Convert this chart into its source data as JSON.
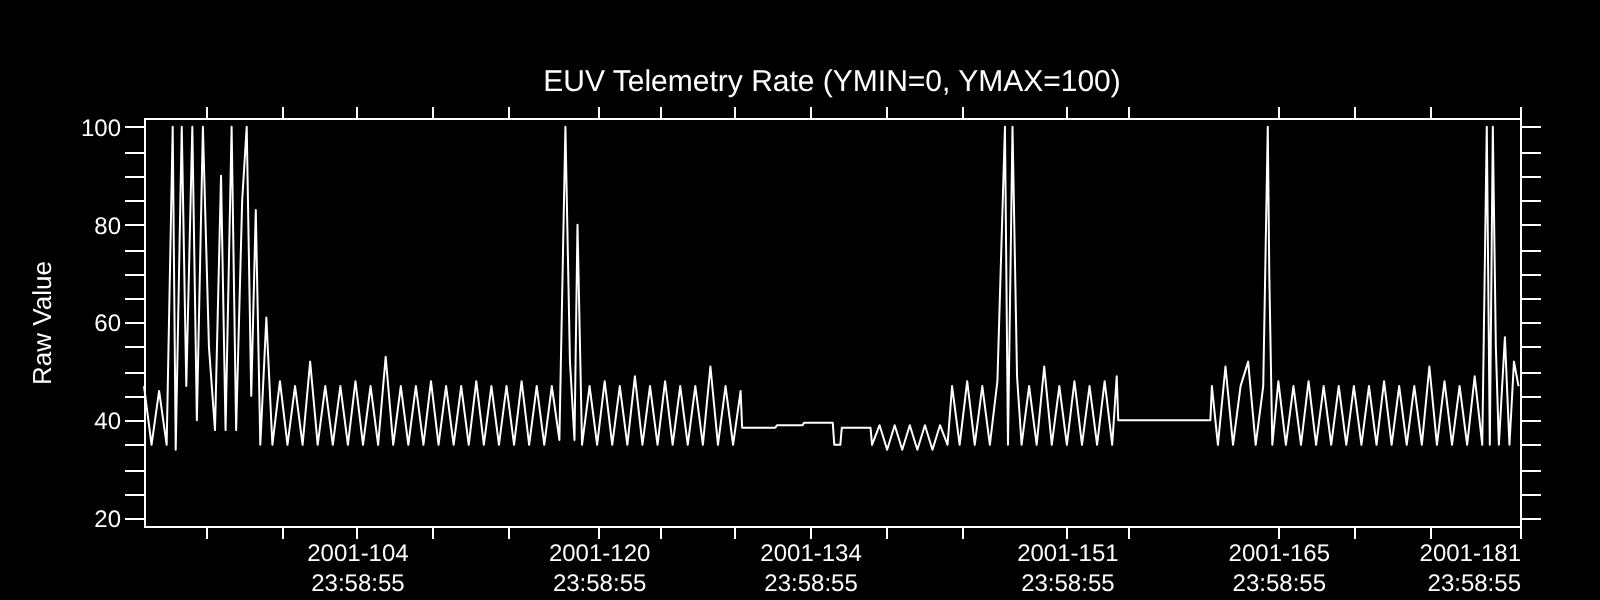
{
  "chart_data": {
    "type": "line",
    "title": "EUV Telemetry Rate (YMIN=0, YMAX=100)",
    "ylabel": "Raw Value",
    "xlim": [
      "2001-03-31T21:36",
      "2001-06-30T23:58:55"
    ],
    "ylim": [
      18.4,
      101.8
    ],
    "xticks": [
      {
        "value": "2001-04-04T23:58:55",
        "label": null
      },
      {
        "value": "2001-04-09T23:58:55",
        "label": null
      },
      {
        "value": "2001-04-14T23:58:55",
        "label": "2001-104\n23:58:55"
      },
      {
        "value": "2001-04-19T23:58:55",
        "label": null
      },
      {
        "value": "2001-04-24T23:58:55",
        "label": null
      },
      {
        "value": "2001-04-30T23:58:55",
        "label": "2001-120\n23:58:55"
      },
      {
        "value": "2001-05-04T23:58:55",
        "label": null
      },
      {
        "value": "2001-05-09T23:58:55",
        "label": null
      },
      {
        "value": "2001-05-14T23:58:55",
        "label": "2001-134\n23:58:55"
      },
      {
        "value": "2001-05-19T23:58:55",
        "label": null
      },
      {
        "value": "2001-05-24T23:58:55",
        "label": null
      },
      {
        "value": "2001-05-31T23:58:55",
        "label": "2001-151\n23:58:55"
      },
      {
        "value": "2001-06-04T23:58:55",
        "label": null
      },
      {
        "value": "2001-06-14T23:58:55",
        "label": "2001-165\n23:58:55"
      },
      {
        "value": "2001-06-19T23:58:55",
        "label": null
      },
      {
        "value": "2001-06-24T23:58:55",
        "label": null
      },
      {
        "value": "2001-06-30T23:58:55",
        "label": "2001-181\n23:58:55"
      }
    ],
    "yticks": [
      20,
      {
        "value": 25,
        "label": null
      },
      {
        "value": 30,
        "label": null
      },
      {
        "value": 35,
        "label": null
      },
      40,
      {
        "value": 45,
        "label": null
      },
      {
        "value": 50,
        "label": null
      },
      {
        "value": 55,
        "label": null
      },
      60,
      {
        "value": 65,
        "label": null
      },
      {
        "value": 70,
        "label": null
      },
      {
        "value": 75,
        "label": null
      },
      80,
      {
        "value": 85,
        "label": null
      },
      {
        "value": 90,
        "label": null
      },
      {
        "value": 95,
        "label": null
      },
      100
    ],
    "grid": false,
    "series": [
      {
        "color": "#ffffff",
        "x": [
          "2001-03-31T21:36",
          "2001-04-01T09:36",
          "2001-04-01T21:36",
          "2001-04-02T09:36",
          "2001-04-02T19:12",
          "2001-04-03T00:00",
          "2001-04-03T09:36",
          "2001-04-03T16:48",
          "2001-04-04T02:24",
          "2001-04-04T09:36",
          "2001-04-04T19:12",
          "2001-04-05T04:48",
          "2001-04-05T14:24",
          "2001-04-06T00:00",
          "2001-04-06T07:12",
          "2001-04-06T16:48",
          "2001-04-07T00:00",
          "2001-04-07T09:36",
          "2001-04-07T16:48",
          "2001-04-08T00:00",
          "2001-04-08T07:12",
          "2001-04-08T14:24",
          "2001-04-09T00:00",
          "2001-04-09T09:36",
          "2001-04-09T21:36",
          "2001-04-10T09:36",
          "2001-04-10T21:36",
          "2001-04-11T09:36",
          "2001-04-11T21:36",
          "2001-04-12T09:36",
          "2001-04-12T21:36",
          "2001-04-13T09:36",
          "2001-04-13T21:36",
          "2001-04-14T09:36",
          "2001-04-14T21:36",
          "2001-04-15T09:36",
          "2001-04-15T21:36",
          "2001-04-16T09:36",
          "2001-04-16T21:36",
          "2001-04-17T09:36",
          "2001-04-17T21:36",
          "2001-04-18T09:36",
          "2001-04-18T21:36",
          "2001-04-19T09:36",
          "2001-04-19T21:36",
          "2001-04-20T09:36",
          "2001-04-20T21:36",
          "2001-04-21T09:36",
          "2001-04-21T21:36",
          "2001-04-22T09:36",
          "2001-04-22T21:36",
          "2001-04-23T09:36",
          "2001-04-23T21:36",
          "2001-04-24T09:36",
          "2001-04-24T21:36",
          "2001-04-25T09:36",
          "2001-04-25T21:36",
          "2001-04-26T09:36",
          "2001-04-26T21:36",
          "2001-04-27T09:36",
          "2001-04-27T21:36",
          "2001-04-28T09:36",
          "2001-04-28T19:12",
          "2001-04-29T02:24",
          "2001-04-29T09:36",
          "2001-04-29T14:24",
          "2001-04-29T21:36",
          "2001-04-30T09:36",
          "2001-04-30T21:36",
          "2001-05-01T09:36",
          "2001-05-01T21:36",
          "2001-05-02T09:36",
          "2001-05-02T21:36",
          "2001-05-03T09:36",
          "2001-05-03T21:36",
          "2001-05-04T09:36",
          "2001-05-04T21:36",
          "2001-05-05T09:36",
          "2001-05-05T21:36",
          "2001-05-06T09:36",
          "2001-05-06T21:36",
          "2001-05-07T09:36",
          "2001-05-07T21:36",
          "2001-05-08T09:36",
          "2001-05-08T21:36",
          "2001-05-09T09:36",
          "2001-05-09T21:36",
          "2001-05-10T09:36",
          "2001-05-10T12:00",
          "2001-05-12T16:48",
          "2001-05-12T19:12",
          "2001-05-14T12:00",
          "2001-05-14T14:24",
          "2001-05-16T12:00",
          "2001-05-16T14:24",
          "2001-05-17T00:00",
          "2001-05-17T02:24",
          "2001-05-19T00:00",
          "2001-05-19T02:24",
          "2001-05-19T14:24",
          "2001-05-20T02:24",
          "2001-05-20T14:24",
          "2001-05-21T02:24",
          "2001-05-21T14:24",
          "2001-05-22T02:24",
          "2001-05-22T14:24",
          "2001-05-23T02:24",
          "2001-05-23T14:24",
          "2001-05-24T02:24",
          "2001-05-24T09:36",
          "2001-05-24T21:36",
          "2001-05-25T09:36",
          "2001-05-25T21:36",
          "2001-05-26T09:36",
          "2001-05-26T21:36",
          "2001-05-27T09:36",
          "2001-05-27T21:36",
          "2001-05-28T02:24",
          "2001-05-28T09:36",
          "2001-05-28T16:48",
          "2001-05-29T00:00",
          "2001-05-29T12:00",
          "2001-05-30T00:00",
          "2001-05-30T12:00",
          "2001-05-31T00:00",
          "2001-05-31T12:00",
          "2001-06-01T00:00",
          "2001-06-01T12:00",
          "2001-06-02T00:00",
          "2001-06-02T12:00",
          "2001-06-03T00:00",
          "2001-06-03T12:00",
          "2001-06-04T00:00",
          "2001-06-04T07:12",
          "2001-06-04T09:36",
          "2001-06-10T12:00",
          "2001-06-10T14:24",
          "2001-06-11T00:00",
          "2001-06-11T12:00",
          "2001-06-12T00:00",
          "2001-06-12T12:00",
          "2001-06-13T00:00",
          "2001-06-13T12:00",
          "2001-06-14T00:00",
          "2001-06-14T07:12",
          "2001-06-14T09:36",
          "2001-06-14T14:24",
          "2001-06-15T00:00",
          "2001-06-15T12:00",
          "2001-06-16T00:00",
          "2001-06-16T12:00",
          "2001-06-17T00:00",
          "2001-06-17T12:00",
          "2001-06-18T00:00",
          "2001-06-18T12:00",
          "2001-06-19T00:00",
          "2001-06-19T12:00",
          "2001-06-20T00:00",
          "2001-06-20T12:00",
          "2001-06-21T00:00",
          "2001-06-21T12:00",
          "2001-06-22T00:00",
          "2001-06-22T12:00",
          "2001-06-23T00:00",
          "2001-06-23T12:00",
          "2001-06-24T00:00",
          "2001-06-24T12:00",
          "2001-06-25T00:00",
          "2001-06-25T12:00",
          "2001-06-26T00:00",
          "2001-06-26T12:00",
          "2001-06-27T00:00",
          "2001-06-27T12:00",
          "2001-06-28T00:00",
          "2001-06-28T12:00",
          "2001-06-28T19:12",
          "2001-06-29T00:00",
          "2001-06-29T04:48",
          "2001-06-29T09:36",
          "2001-06-29T14:24",
          "2001-06-30T00:00",
          "2001-06-30T07:12",
          "2001-06-30T14:24",
          "2001-06-30T21:36"
        ],
        "values": [
          47,
          35,
          46,
          35,
          100,
          34,
          100,
          47,
          100,
          40,
          100,
          55,
          38,
          90,
          38,
          100,
          38,
          85,
          100,
          45,
          83,
          35,
          61,
          35,
          48,
          35,
          47,
          35,
          52,
          35,
          47,
          35,
          47,
          35,
          48,
          35,
          47,
          35,
          53,
          35,
          47,
          35,
          47,
          35,
          48,
          35,
          47,
          35,
          47,
          35,
          48,
          35,
          47,
          35,
          47,
          35,
          48,
          35,
          47,
          35,
          47,
          36,
          100,
          52,
          36,
          80,
          35,
          47,
          35,
          48,
          35,
          47,
          35,
          49,
          35,
          47,
          35,
          48,
          35,
          47,
          35,
          47,
          35,
          51,
          35,
          47,
          35,
          46,
          38.5,
          38.5,
          39,
          39,
          39.5,
          39.5,
          35,
          35,
          38.5,
          38.5,
          35,
          39,
          34,
          39,
          34,
          39,
          34,
          39,
          34,
          39,
          35,
          47,
          35,
          48,
          35,
          47,
          35,
          48,
          100,
          35,
          100,
          49,
          35,
          47,
          35,
          51,
          35,
          47,
          35,
          48,
          35,
          47,
          35,
          48,
          35,
          49,
          40,
          40,
          47,
          35,
          51,
          35,
          47,
          52,
          35,
          47,
          100,
          70,
          35,
          48,
          35,
          47,
          35,
          48,
          35,
          47,
          35,
          47,
          35,
          47,
          35,
          47,
          35,
          48,
          35,
          47,
          35,
          47,
          35,
          51,
          35,
          48,
          35,
          47,
          35,
          49,
          35,
          100,
          35,
          100,
          55,
          35,
          57,
          35,
          52,
          47
        ]
      }
    ]
  }
}
